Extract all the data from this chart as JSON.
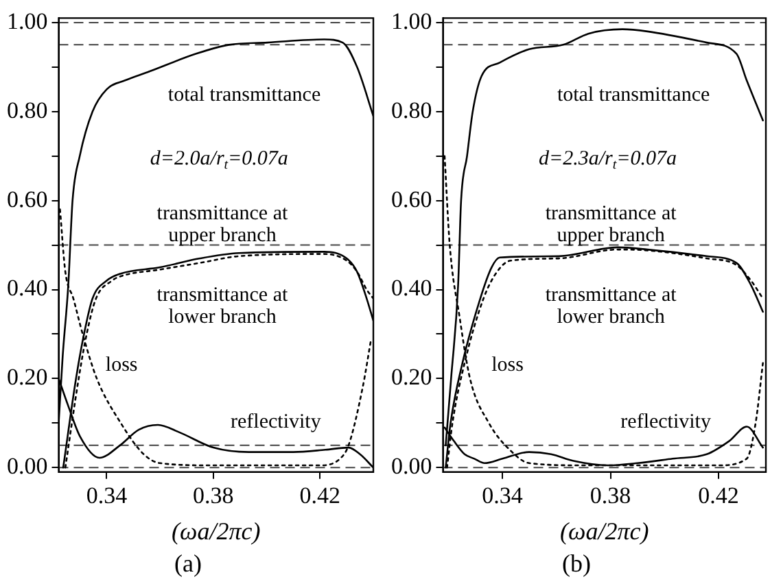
{
  "chart_data": [
    {
      "type": "line",
      "title": "(a)",
      "xlabel": "(ωa/2πc)",
      "annotations": [
        "d=2.0a/r$_{t}$=0.07a"
      ],
      "xlim": [
        0.322,
        0.44
      ],
      "xticks": [
        0.34,
        0.38,
        0.42
      ],
      "ylim": [
        -0.01,
        1.01
      ],
      "yticks": [
        {
          "value": 0,
          "label": "0.00"
        },
        {
          "value": 0.1,
          "label": null
        },
        {
          "value": 0.2,
          "label": "0.20"
        },
        {
          "value": 0.3,
          "label": null
        },
        {
          "value": 0.4,
          "label": "0.40"
        },
        {
          "value": 0.5,
          "label": null
        },
        {
          "value": 0.6,
          "label": "0.60"
        },
        {
          "value": 0.7,
          "label": null
        },
        {
          "value": 0.8,
          "label": "0.80"
        },
        {
          "value": 0.9,
          "label": null
        },
        {
          "value": 1.0,
          "label": "1.00"
        }
      ],
      "grid": false,
      "marker": "none",
      "ref_lines": [
        {
          "axis": "y",
          "value": 1.0,
          "color": "#444444",
          "line_style": "dashed"
        },
        {
          "axis": "y",
          "value": 0.95,
          "color": "#444444",
          "line_style": "dashed"
        },
        {
          "axis": "y",
          "value": 0.5,
          "color": "#444444",
          "line_style": "dashed"
        },
        {
          "axis": "y",
          "value": 0.05,
          "color": "#444444",
          "line_style": "dashed"
        },
        {
          "axis": "y",
          "value": 0.0,
          "color": "#444444",
          "line_style": "dashed"
        }
      ],
      "series": [
        {
          "name": "total transmittance",
          "color": "#000000",
          "line_style": "solid",
          "x": [
            0.322,
            0.3235,
            0.3256,
            0.3272,
            0.3299,
            0.3347,
            0.34,
            0.3469,
            0.356,
            0.3736,
            0.3859,
            0.4003,
            0.4216,
            0.4285,
            0.4339,
            0.44
          ],
          "values": [
            0.1,
            0.25,
            0.41,
            0.6,
            0.7,
            0.8,
            0.85,
            0.87,
            0.89,
            0.93,
            0.95,
            0.955,
            0.962,
            0.955,
            0.9,
            0.79
          ]
        },
        {
          "name": "transmittance at upper branch",
          "color": "#000000",
          "line_style": "solid",
          "x": [
            0.3237,
            0.3285,
            0.3315,
            0.3347,
            0.34,
            0.3453,
            0.36,
            0.375,
            0.3896,
            0.4216,
            0.43,
            0.4339,
            0.4375,
            0.44
          ],
          "values": [
            0.0,
            0.2,
            0.3,
            0.38,
            0.42,
            0.436,
            0.45,
            0.47,
            0.482,
            0.485,
            0.47,
            0.44,
            0.38,
            0.33
          ]
        },
        {
          "name": "transmittance at lower branch",
          "color": "#000000",
          "line_style": "dotted",
          "x": [
            0.3245,
            0.3295,
            0.3325,
            0.336,
            0.342,
            0.3453,
            0.36,
            0.375,
            0.3896,
            0.4216,
            0.43,
            0.4339,
            0.4375,
            0.44
          ],
          "values": [
            0.0,
            0.2,
            0.3,
            0.38,
            0.42,
            0.43,
            0.445,
            0.46,
            0.475,
            0.48,
            0.465,
            0.44,
            0.4,
            0.38
          ]
        },
        {
          "name": "loss",
          "color": "#000000",
          "line_style": "dotted",
          "x": [
            0.3225,
            0.3245,
            0.3275,
            0.331,
            0.3363,
            0.3453,
            0.3539,
            0.36,
            0.38,
            0.42,
            0.4275,
            0.4307,
            0.436,
            0.4392
          ],
          "values": [
            0.58,
            0.44,
            0.38,
            0.3,
            0.2,
            0.1,
            0.03,
            0.01,
            0.005,
            0.005,
            0.02,
            0.05,
            0.18,
            0.29
          ]
        },
        {
          "name": "reflectivity",
          "color": "#000000",
          "line_style": "solid",
          "x": [
            0.322,
            0.3255,
            0.33,
            0.3373,
            0.345,
            0.352,
            0.3592,
            0.367,
            0.38,
            0.3933,
            0.41,
            0.422,
            0.4307,
            0.435,
            0.44
          ],
          "values": [
            0.2,
            0.14,
            0.07,
            0.022,
            0.05,
            0.085,
            0.096,
            0.08,
            0.045,
            0.035,
            0.035,
            0.04,
            0.045,
            0.03,
            0.0
          ]
        }
      ]
    },
    {
      "type": "line",
      "title": "(b)",
      "xlabel": "(ωa/2πc)",
      "annotations": [
        "d=2.3a/r$_{t}$=0.07a"
      ],
      "xlim": [
        0.318,
        0.4375
      ],
      "xticks": [
        0.34,
        0.38,
        0.42
      ],
      "ylim": [
        -0.01,
        1.01
      ],
      "yticks": [
        {
          "value": 0,
          "label": "0.00"
        },
        {
          "value": 0.1,
          "label": null
        },
        {
          "value": 0.2,
          "label": "0.20"
        },
        {
          "value": 0.3,
          "label": null
        },
        {
          "value": 0.4,
          "label": "0.40"
        },
        {
          "value": 0.5,
          "label": null
        },
        {
          "value": 0.6,
          "label": "0.60"
        },
        {
          "value": 0.7,
          "label": null
        },
        {
          "value": 0.8,
          "label": "0.80"
        },
        {
          "value": 0.9,
          "label": null
        },
        {
          "value": 1.0,
          "label": "1.00"
        }
      ],
      "grid": false,
      "marker": "none",
      "ref_lines": [
        {
          "axis": "y",
          "value": 1.0,
          "color": "#444444",
          "line_style": "dashed"
        },
        {
          "axis": "y",
          "value": 0.95,
          "color": "#444444",
          "line_style": "dashed"
        },
        {
          "axis": "y",
          "value": 0.5,
          "color": "#444444",
          "line_style": "dashed"
        },
        {
          "axis": "y",
          "value": 0.05,
          "color": "#444444",
          "line_style": "dashed"
        },
        {
          "axis": "y",
          "value": 0.0,
          "color": "#444444",
          "line_style": "dashed"
        }
      ],
      "series": [
        {
          "name": "total transmittance",
          "color": "#000000",
          "line_style": "solid",
          "x": [
            0.319,
            0.321,
            0.3236,
            0.3247,
            0.3269,
            0.329,
            0.3323,
            0.339,
            0.3499,
            0.3625,
            0.3718,
            0.3844,
            0.3937,
            0.4156,
            0.4266,
            0.4304,
            0.4364
          ],
          "values": [
            0.05,
            0.2,
            0.41,
            0.6,
            0.7,
            0.8,
            0.88,
            0.91,
            0.94,
            0.95,
            0.975,
            0.985,
            0.98,
            0.955,
            0.93,
            0.87,
            0.78
          ]
        },
        {
          "name": "transmittance at upper branch",
          "color": "#000000",
          "line_style": "solid",
          "x": [
            0.319,
            0.3208,
            0.3252,
            0.3318,
            0.336,
            0.339,
            0.3608,
            0.3827,
            0.3937,
            0.4156,
            0.4266,
            0.432,
            0.4364
          ],
          "values": [
            0.0,
            0.1,
            0.235,
            0.38,
            0.45,
            0.472,
            0.475,
            0.495,
            0.49,
            0.475,
            0.46,
            0.41,
            0.35
          ]
        },
        {
          "name": "transmittance at lower branch",
          "color": "#000000",
          "line_style": "dotted",
          "x": [
            0.3195,
            0.3215,
            0.326,
            0.333,
            0.338,
            0.343,
            0.3608,
            0.3827,
            0.3937,
            0.4156,
            0.4266,
            0.432,
            0.4364
          ],
          "values": [
            0.0,
            0.1,
            0.235,
            0.38,
            0.44,
            0.465,
            0.47,
            0.49,
            0.488,
            0.47,
            0.455,
            0.42,
            0.38
          ]
        },
        {
          "name": "loss",
          "color": "#000000",
          "line_style": "dotted",
          "x": [
            0.3186,
            0.3205,
            0.3241,
            0.328,
            0.335,
            0.3427,
            0.3499,
            0.37,
            0.42,
            0.4304,
            0.4337,
            0.4364
          ],
          "values": [
            0.7,
            0.5,
            0.34,
            0.2,
            0.1,
            0.04,
            0.01,
            0.005,
            0.005,
            0.02,
            0.1,
            0.235
          ]
        },
        {
          "name": "reflectivity",
          "color": "#000000",
          "line_style": "solid",
          "x": [
            0.3186,
            0.322,
            0.326,
            0.3296,
            0.3334,
            0.34,
            0.3499,
            0.358,
            0.3663,
            0.3789,
            0.39,
            0.403,
            0.4156,
            0.424,
            0.4304,
            0.4364
          ],
          "values": [
            0.09,
            0.06,
            0.03,
            0.02,
            0.01,
            0.02,
            0.035,
            0.03,
            0.015,
            0.005,
            0.01,
            0.02,
            0.03,
            0.06,
            0.092,
            0.045
          ]
        }
      ]
    }
  ]
}
